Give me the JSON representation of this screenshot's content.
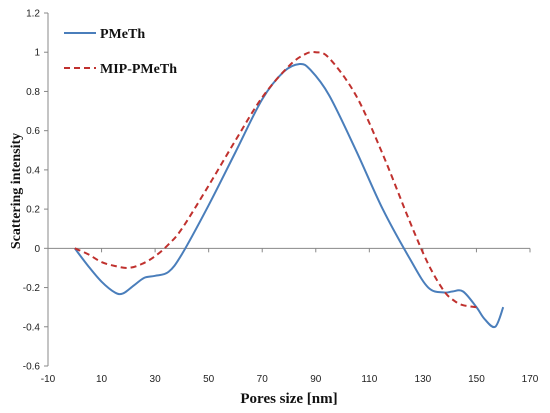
{
  "chart_data": {
    "type": "line",
    "title": "",
    "xlabel": "Pores size [nm]",
    "ylabel": "Scattering intensity",
    "xlim": [
      -10,
      170
    ],
    "ylim": [
      -0.6,
      1.2
    ],
    "x_ticks": [
      "-10",
      "10",
      "30",
      "50",
      "70",
      "90",
      "110",
      "130",
      "150",
      "170"
    ],
    "y_ticks": [
      "-0.6",
      "-0.4",
      "-0.2",
      "0",
      "0.2",
      "0.4",
      "0.6",
      "0.8",
      "1",
      "1.2"
    ],
    "grid": false,
    "legend_position": "top-left",
    "series": [
      {
        "name": "PMeTh",
        "color": "#4a7ebb",
        "style": "solid",
        "x": [
          0,
          5,
          10,
          15,
          18,
          22,
          26,
          30,
          35,
          40,
          50,
          60,
          70,
          78,
          84,
          88,
          95,
          105,
          115,
          125,
          132,
          138,
          141,
          145,
          150,
          153,
          157,
          160
        ],
        "y": [
          0,
          -0.09,
          -0.17,
          -0.225,
          -0.23,
          -0.19,
          -0.15,
          -0.14,
          -0.12,
          -0.03,
          0.22,
          0.49,
          0.76,
          0.9,
          0.94,
          0.91,
          0.78,
          0.5,
          0.2,
          -0.05,
          -0.2,
          -0.225,
          -0.22,
          -0.22,
          -0.3,
          -0.36,
          -0.4,
          -0.3
        ]
      },
      {
        "name": "MIP-PMeTh",
        "color": "#c0312e",
        "style": "dashed",
        "x": [
          0,
          5,
          10,
          15,
          20,
          25,
          30,
          35,
          40,
          50,
          60,
          70,
          80,
          86,
          90,
          95,
          105,
          115,
          125,
          132,
          138,
          142,
          145,
          150
        ],
        "y": [
          0,
          -0.03,
          -0.07,
          -0.09,
          -0.1,
          -0.08,
          -0.04,
          0.02,
          0.1,
          0.32,
          0.55,
          0.77,
          0.93,
          0.99,
          1.0,
          0.97,
          0.78,
          0.48,
          0.14,
          -0.08,
          -0.22,
          -0.27,
          -0.29,
          -0.3
        ]
      }
    ]
  }
}
